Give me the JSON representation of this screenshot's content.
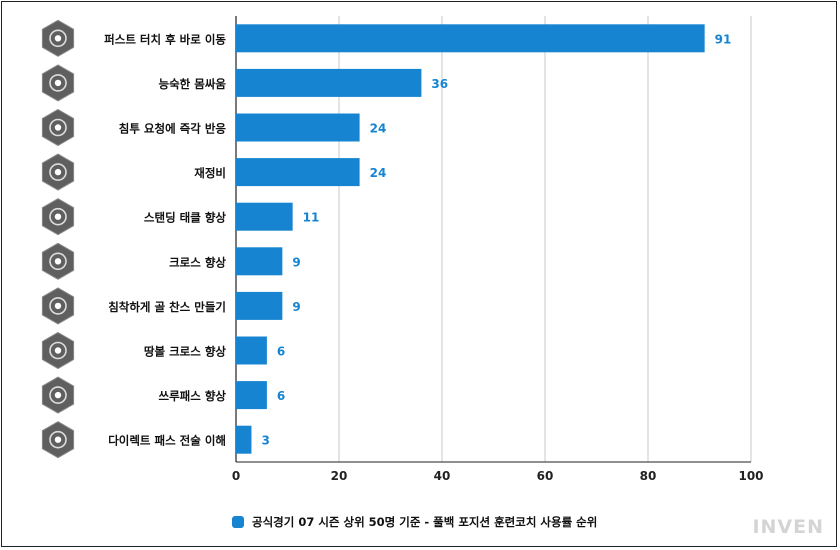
{
  "colors": {
    "bar": "#1684d0",
    "value_label": "#1684d0",
    "icon_bg": "#5f5f5f",
    "icon_ring": "#dddddd",
    "grid": "#c8c8c8",
    "legend": "#1684d0",
    "watermark": "#d4d4d4"
  },
  "legend": {
    "label": "공식경기 07 시즌 상위 50명 기준 - 풀백 포지션 훈련코치 사용률 순위"
  },
  "watermark": "INVEN",
  "chart_data": {
    "type": "bar",
    "orientation": "horizontal",
    "categories": [
      "퍼스트 터치 후 바로 이동",
      "능숙한 몸싸움",
      "침투 요청에 즉각 반응",
      "재정비",
      "스탠딩 태클 향상",
      "크로스 향상",
      "침착하게 골 찬스 만들기",
      "땅볼 크로스 향상",
      "쓰루패스 향상",
      "다이렉트 패스 전술 이해"
    ],
    "icons": [
      "first-touch-icon",
      "physical-battle-icon",
      "run-request-icon",
      "recovery-icon",
      "tackle-icon",
      "cross-icon",
      "composure-icon",
      "low-cross-icon",
      "through-pass-icon",
      "direct-pass-icon"
    ],
    "values": [
      91,
      36,
      24,
      24,
      11,
      9,
      9,
      6,
      6,
      3
    ],
    "series": [
      {
        "name": "공식경기 07 시즌 상위 50명 기준 - 풀백 포지션 훈련코치 사용률 순위",
        "values": [
          91,
          36,
          24,
          24,
          11,
          9,
          9,
          6,
          6,
          3
        ]
      }
    ],
    "xlim": [
      0,
      100
    ],
    "xticks": [
      0,
      20,
      40,
      60,
      80,
      100
    ],
    "grid": "vertical",
    "legend_position": "bottom"
  }
}
